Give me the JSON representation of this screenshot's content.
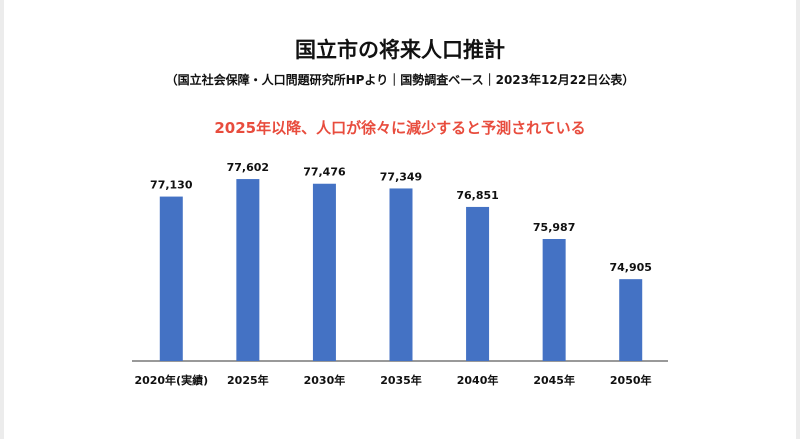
{
  "colors": {
    "bar": "#4472c4",
    "headline": "#e84c3d",
    "axis": "#333333",
    "text": "#111111"
  },
  "chart_data": {
    "type": "bar",
    "title": "国立市の将来人口推計",
    "subtitle": "（国立社会保障・人口問題研究所HPより｜国勢調査ベース｜2023年12月22日公表）",
    "annotation": "2025年以降、人口が徐々に減少すると予測されている",
    "categories": [
      "2020年(実績)",
      "2025年",
      "2030年",
      "2035年",
      "2040年",
      "2045年",
      "2050年"
    ],
    "values": [
      77130,
      77602,
      77476,
      77349,
      76851,
      75987,
      74905
    ],
    "value_labels": [
      "77,130",
      "77,602",
      "77,476",
      "77,349",
      "76,851",
      "75,987",
      "74,905"
    ],
    "ylim": [
      72700,
      77900
    ],
    "xlabel": "",
    "ylabel": "",
    "grid": false,
    "legend": false
  }
}
